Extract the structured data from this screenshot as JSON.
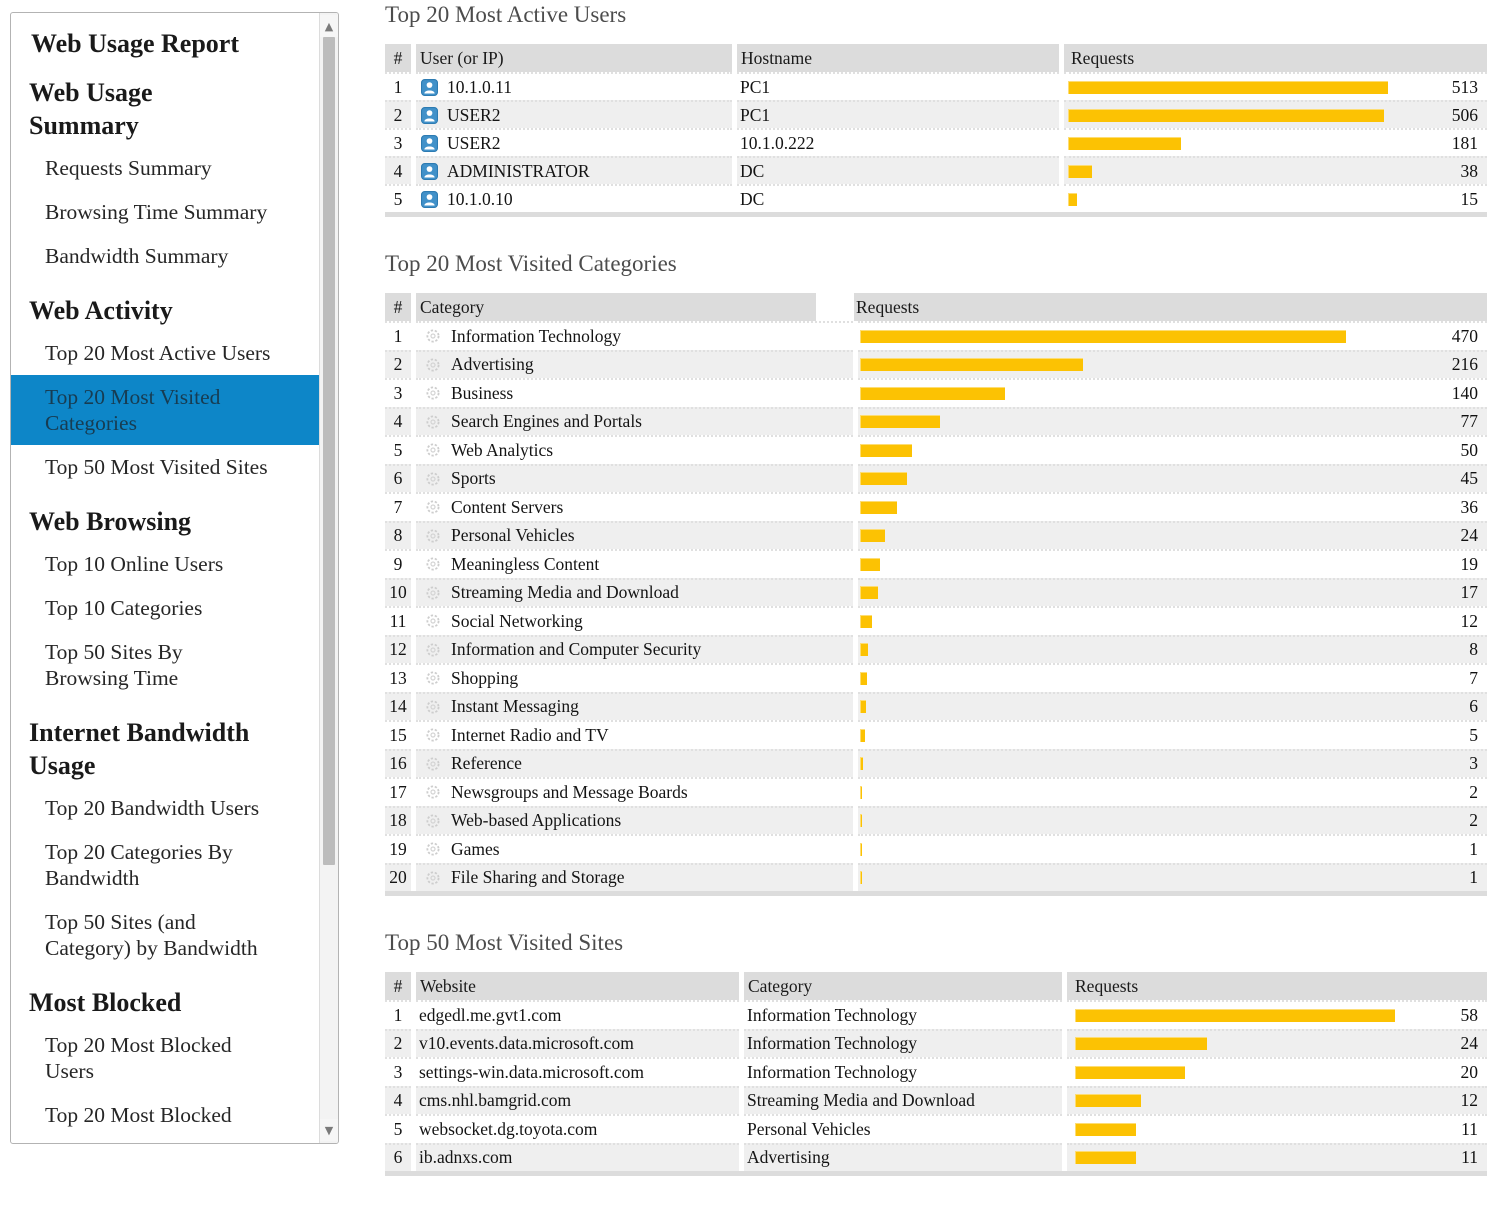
{
  "colors": {
    "accent_blue": "#0d86c8",
    "selected_text": "#173c52",
    "bar_yellow": "#fcc203",
    "table_header_gray": "#dcdcdc",
    "row_alt_gray": "#efefef"
  },
  "sidebar": {
    "title": "Web Usage Report",
    "sections": [
      {
        "heading": "Web Usage\nSummary",
        "items": [
          {
            "label": "Requests Summary"
          },
          {
            "label": "Browsing Time Summary"
          },
          {
            "label": "Bandwidth Summary"
          }
        ]
      },
      {
        "heading": "Web Activity",
        "items": [
          {
            "label": "Top 20 Most Active Users"
          },
          {
            "label": "Top 20 Most Visited\nCategories",
            "selected": true
          },
          {
            "label": "Top 50 Most Visited Sites"
          }
        ]
      },
      {
        "heading": "Web Browsing",
        "items": [
          {
            "label": "Top 10 Online Users"
          },
          {
            "label": "Top 10 Categories"
          },
          {
            "label": "Top 50 Sites By\nBrowsing Time"
          }
        ]
      },
      {
        "heading": "Internet Bandwidth\nUsage",
        "items": [
          {
            "label": "Top 20 Bandwidth Users"
          },
          {
            "label": "Top 20 Categories By\nBandwidth"
          },
          {
            "label": "Top 50 Sites (and\nCategory) by Bandwidth"
          }
        ]
      },
      {
        "heading": "Most Blocked",
        "items": [
          {
            "label": "Top 20 Most Blocked\nUsers"
          },
          {
            "label": "Top 20 Most Blocked"
          }
        ]
      }
    ]
  },
  "tables": {
    "active_users": {
      "title": "Top 20 Most Active Users",
      "columns": [
        "#",
        "User (or IP)",
        "Hostname",
        "Requests"
      ],
      "max_requests": 513,
      "rows": [
        {
          "rank": 1,
          "user": "10.1.0.11",
          "hostname": "PC1",
          "requests": 513
        },
        {
          "rank": 2,
          "user": "USER2",
          "hostname": "PC1",
          "requests": 506
        },
        {
          "rank": 3,
          "user": "USER2",
          "hostname": "10.1.0.222",
          "requests": 181
        },
        {
          "rank": 4,
          "user": "ADMINISTRATOR",
          "hostname": "DC",
          "requests": 38
        },
        {
          "rank": 5,
          "user": "10.1.0.10",
          "hostname": "DC",
          "requests": 15
        }
      ]
    },
    "categories": {
      "title": "Top 20 Most Visited Categories",
      "columns": [
        "#",
        "Category",
        "Requests"
      ],
      "max_requests": 470,
      "rows": [
        {
          "rank": 1,
          "category": "Information Technology",
          "requests": 470
        },
        {
          "rank": 2,
          "category": "Advertising",
          "requests": 216
        },
        {
          "rank": 3,
          "category": "Business",
          "requests": 140
        },
        {
          "rank": 4,
          "category": "Search Engines and Portals",
          "requests": 77
        },
        {
          "rank": 5,
          "category": "Web Analytics",
          "requests": 50
        },
        {
          "rank": 6,
          "category": "Sports",
          "requests": 45
        },
        {
          "rank": 7,
          "category": "Content Servers",
          "requests": 36
        },
        {
          "rank": 8,
          "category": "Personal Vehicles",
          "requests": 24
        },
        {
          "rank": 9,
          "category": "Meaningless Content",
          "requests": 19
        },
        {
          "rank": 10,
          "category": "Streaming Media and Download",
          "requests": 17
        },
        {
          "rank": 11,
          "category": "Social Networking",
          "requests": 12
        },
        {
          "rank": 12,
          "category": "Information and Computer Security",
          "requests": 8
        },
        {
          "rank": 13,
          "category": "Shopping",
          "requests": 7
        },
        {
          "rank": 14,
          "category": "Instant Messaging",
          "requests": 6
        },
        {
          "rank": 15,
          "category": "Internet Radio and TV",
          "requests": 5
        },
        {
          "rank": 16,
          "category": "Reference",
          "requests": 3
        },
        {
          "rank": 17,
          "category": "Newsgroups and Message Boards",
          "requests": 2
        },
        {
          "rank": 18,
          "category": "Web-based Applications",
          "requests": 2
        },
        {
          "rank": 19,
          "category": "Games",
          "requests": 1
        },
        {
          "rank": 20,
          "category": "File Sharing and Storage",
          "requests": 1
        }
      ]
    },
    "sites": {
      "title": "Top 50 Most Visited Sites",
      "columns": [
        "#",
        "Website",
        "Category",
        "Requests"
      ],
      "max_requests": 58,
      "rows": [
        {
          "rank": 1,
          "website": "edgedl.me.gvt1.com",
          "category": "Information Technology",
          "requests": 58
        },
        {
          "rank": 2,
          "website": "v10.events.data.microsoft.com",
          "category": "Information Technology",
          "requests": 24
        },
        {
          "rank": 3,
          "website": "settings-win.data.microsoft.com",
          "category": "Information Technology",
          "requests": 20
        },
        {
          "rank": 4,
          "website": "cms.nhl.bamgrid.com",
          "category": "Streaming Media and Download",
          "requests": 12
        },
        {
          "rank": 5,
          "website": "websocket.dg.toyota.com",
          "category": "Personal Vehicles",
          "requests": 11
        },
        {
          "rank": 6,
          "website": "ib.adnxs.com",
          "category": "Advertising",
          "requests": 11
        }
      ]
    }
  }
}
